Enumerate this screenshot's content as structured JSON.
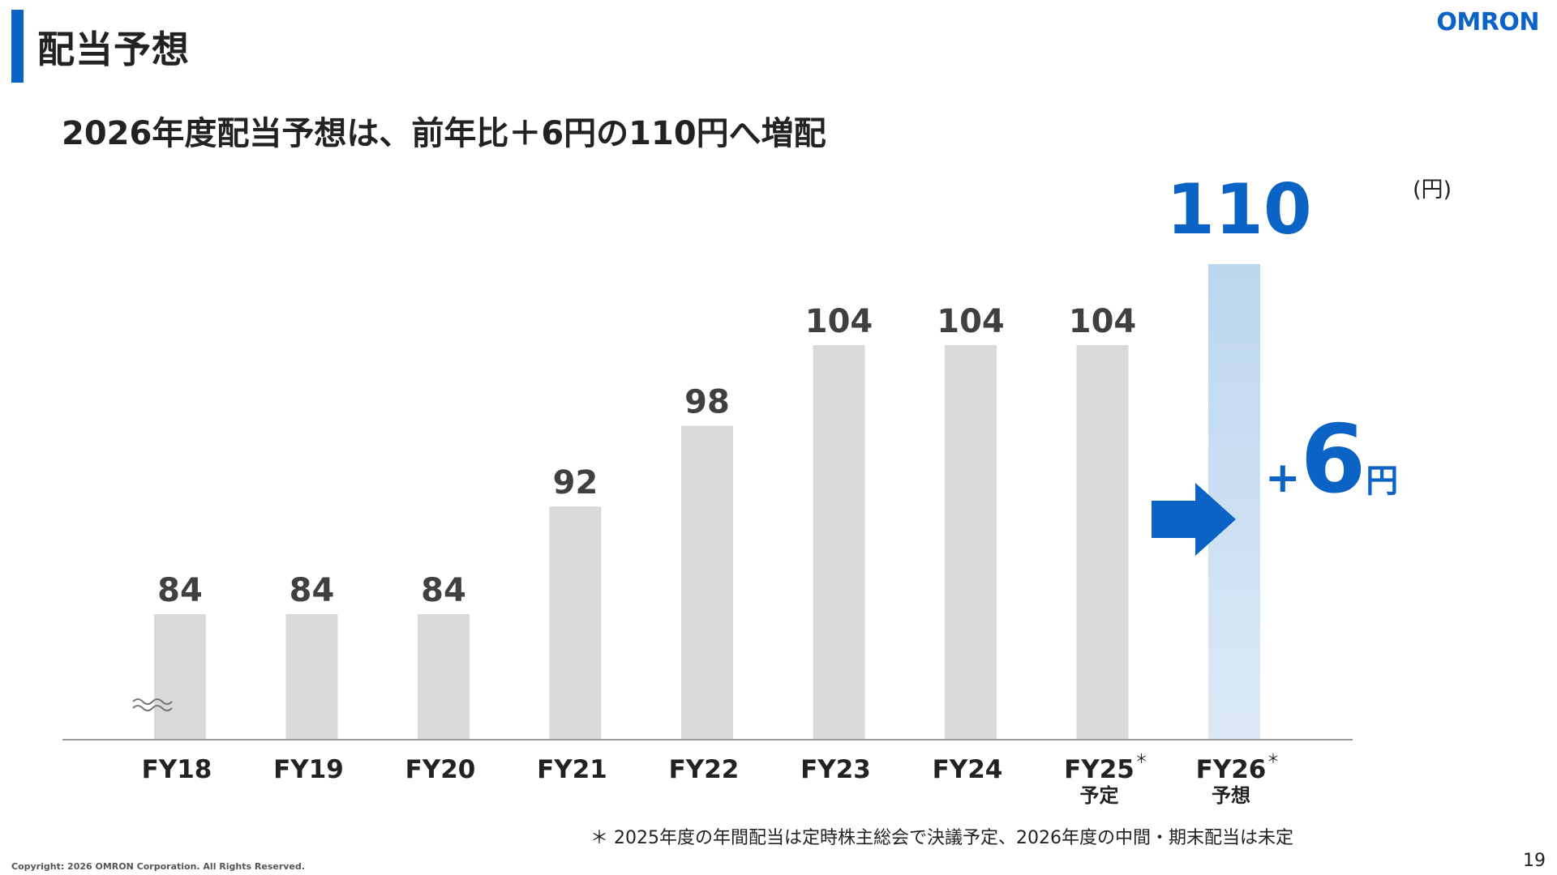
{
  "header": {
    "title": "配当予想",
    "logo_text": "OMRON",
    "subtitle": "2026年度配当予想は、前年比＋6円の110円へ増配"
  },
  "unit_label": "(円)",
  "delta": {
    "sign": "+",
    "value": "6",
    "unit": "円"
  },
  "footnote": "＊ 2025年度の年間配当は定時株主総会で決議予定、2026年度の中間・期末配当は未定",
  "copyright": "Copyright: 2026 OMRON Corporation. All Rights Reserved.",
  "page_number": "19",
  "colors": {
    "accent": "#0b63c5",
    "bar": "#d9d9d9",
    "highlight_bar_top": "#bcd6ee",
    "highlight_bar_bottom": "#dbe9f6",
    "axis": "#999999",
    "value_text": "#404040"
  },
  "chart_data": {
    "type": "bar",
    "categories": [
      "FY18",
      "FY19",
      "FY20",
      "FY21",
      "FY22",
      "FY23",
      "FY24",
      "FY25",
      "FY26"
    ],
    "category_marks": [
      "",
      "",
      "",
      "",
      "",
      "",
      "",
      "＊",
      "＊"
    ],
    "category_sublabels": [
      "",
      "",
      "",
      "",
      "",
      "",
      "",
      "予定",
      "予想"
    ],
    "values": [
      84,
      84,
      84,
      92,
      98,
      104,
      104,
      104,
      110
    ],
    "value_labels": [
      "84",
      "84",
      "84",
      "92",
      "98",
      "104",
      "104",
      "104",
      "110"
    ],
    "highlight_index": 8,
    "axis_break": true,
    "grid": false,
    "legend": "none"
  }
}
